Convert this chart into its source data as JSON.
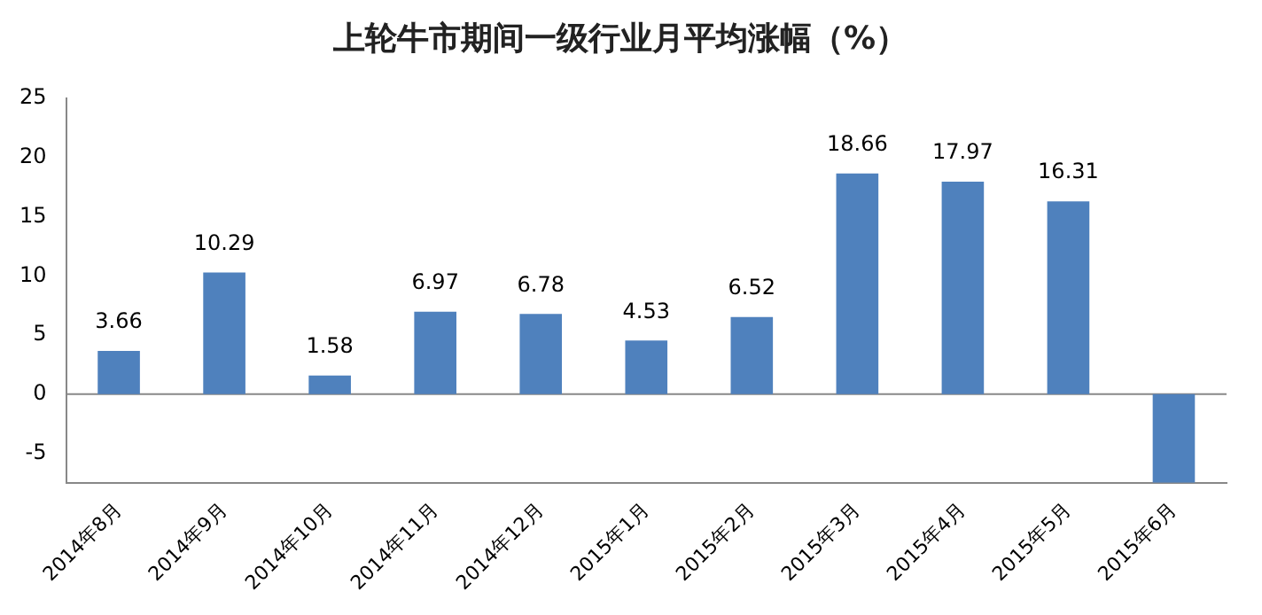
{
  "chart_data": {
    "type": "bar",
    "title": "上轮牛市期间一级行业月平均涨幅（%）",
    "categories": [
      "2014年8月",
      "2014年9月",
      "2014年10月",
      "2014年11月",
      "2014年12月",
      "2015年1月",
      "2015年2月",
      "2015年3月",
      "2015年4月",
      "2015年5月",
      "2015年6月"
    ],
    "values": [
      3.66,
      10.29,
      1.58,
      6.97,
      6.78,
      4.53,
      6.52,
      18.66,
      17.97,
      16.31,
      -7.5
    ],
    "value_labels": [
      "3.66",
      "10.29",
      "1.58",
      "6.97",
      "6.78",
      "4.53",
      "6.52",
      "18.66",
      "17.97",
      "16.31",
      null
    ],
    "color": "#4f81bd",
    "ylim": [
      -7.5,
      25
    ],
    "yticks": [
      -5,
      0,
      5,
      10,
      15,
      20,
      25
    ],
    "grid": false,
    "legend": false,
    "ref_lines": [
      {
        "axis": "y",
        "value": 0,
        "color": "#888888"
      }
    ]
  }
}
